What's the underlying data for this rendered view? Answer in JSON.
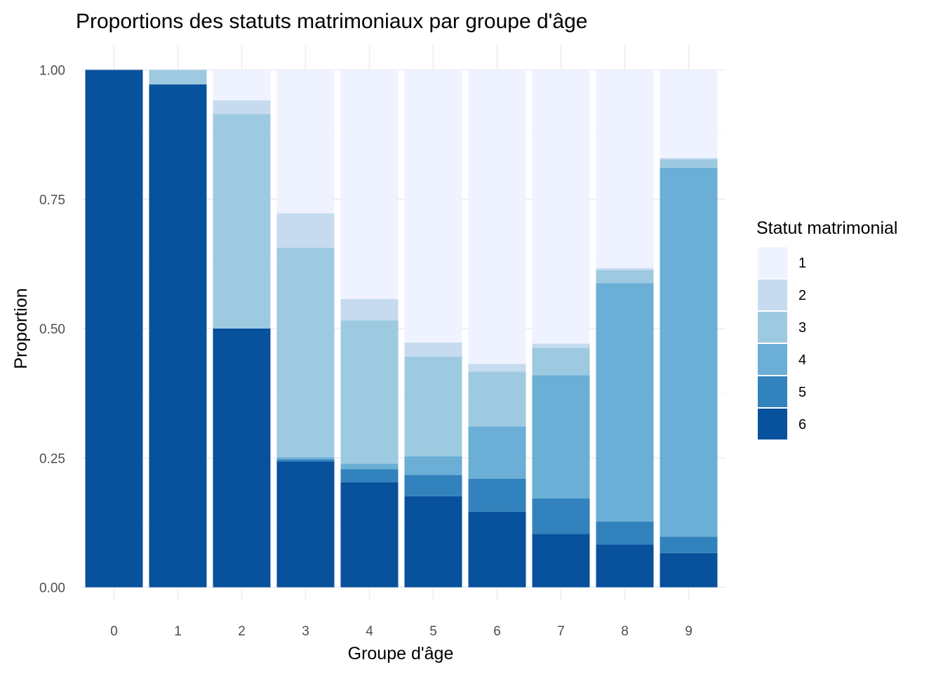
{
  "chart_data": {
    "type": "bar",
    "stacked": true,
    "normalized": true,
    "title": "Proportions des statuts matrimoniaux par groupe d'âge",
    "xlabel": "Groupe d'âge",
    "ylabel": "Proportion",
    "ylim": [
      0,
      1
    ],
    "y_ticks": [
      "0.00",
      "0.25",
      "0.50",
      "0.75",
      "1.00"
    ],
    "y_tick_values": [
      0,
      0.25,
      0.5,
      0.75,
      1.0
    ],
    "categories": [
      "0",
      "1",
      "2",
      "3",
      "4",
      "5",
      "6",
      "7",
      "8",
      "9"
    ],
    "grid": true,
    "legend": {
      "title": "Statut matrimonial",
      "position": "right",
      "entries": [
        "1",
        "2",
        "3",
        "4",
        "5",
        "6"
      ]
    },
    "series": [
      {
        "name": "6",
        "color": "#08519c",
        "values": [
          1.0,
          0.972,
          0.5,
          0.243,
          0.203,
          0.176,
          0.146,
          0.103,
          0.083,
          0.066
        ]
      },
      {
        "name": "5",
        "color": "#3182bd",
        "values": [
          0.0,
          0.0,
          0.0,
          0.004,
          0.025,
          0.041,
          0.064,
          0.069,
          0.044,
          0.032
        ]
      },
      {
        "name": "4",
        "color": "#6baed6",
        "values": [
          0.0,
          0.0,
          0.0,
          0.004,
          0.011,
          0.036,
          0.101,
          0.238,
          0.461,
          0.713
        ]
      },
      {
        "name": "3",
        "color": "#9ecae1",
        "values": [
          0.0,
          0.028,
          0.415,
          0.405,
          0.277,
          0.193,
          0.106,
          0.053,
          0.025,
          0.016
        ]
      },
      {
        "name": "2",
        "color": "#c6dbef",
        "values": [
          0.0,
          0.0,
          0.026,
          0.067,
          0.041,
          0.027,
          0.015,
          0.008,
          0.004,
          0.003
        ]
      },
      {
        "name": "1",
        "color": "#eff3ff",
        "values": [
          0.0,
          0.0,
          0.059,
          0.277,
          0.443,
          0.527,
          0.568,
          0.529,
          0.383,
          0.17
        ]
      }
    ]
  }
}
